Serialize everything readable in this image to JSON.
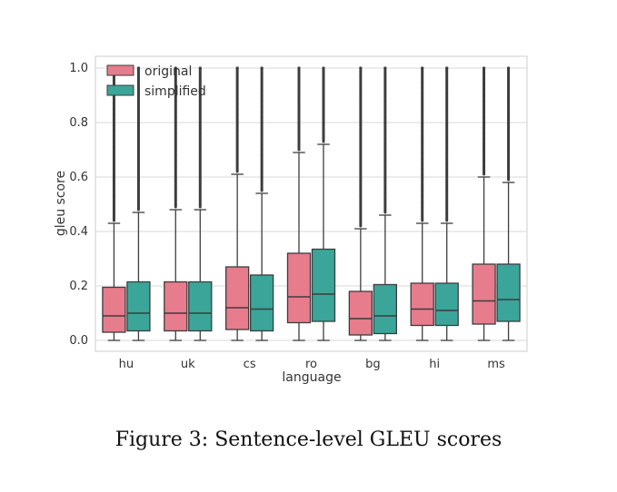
{
  "caption": "Figure 3: Sentence-level GLEU scores",
  "chart_data": {
    "type": "box",
    "xlabel": "language",
    "ylabel": "gleu score",
    "ylim": [
      0.0,
      1.0
    ],
    "yticks": [
      "0.0",
      "0.2",
      "0.4",
      "0.6",
      "0.8",
      "1.0"
    ],
    "categories": [
      "hu",
      "uk",
      "cs",
      "ro",
      "bg",
      "hi",
      "ms"
    ],
    "grid": "horizontal",
    "legend_position": "top-left",
    "series": [
      {
        "name": "original",
        "color": "#e77c8d",
        "boxes": [
          {
            "whisker_low": 0.0,
            "q1": 0.03,
            "median": 0.09,
            "q3": 0.195,
            "whisker_high": 0.43,
            "outlier_start": 0.44
          },
          {
            "whisker_low": 0.0,
            "q1": 0.035,
            "median": 0.1,
            "q3": 0.215,
            "whisker_high": 0.48,
            "outlier_start": 0.49
          },
          {
            "whisker_low": 0.0,
            "q1": 0.04,
            "median": 0.12,
            "q3": 0.27,
            "whisker_high": 0.61,
            "outlier_start": 0.62
          },
          {
            "whisker_low": 0.0,
            "q1": 0.065,
            "median": 0.16,
            "q3": 0.32,
            "whisker_high": 0.69,
            "outlier_start": 0.7
          },
          {
            "whisker_low": 0.0,
            "q1": 0.02,
            "median": 0.08,
            "q3": 0.18,
            "whisker_high": 0.41,
            "outlier_start": 0.42
          },
          {
            "whisker_low": 0.0,
            "q1": 0.055,
            "median": 0.115,
            "q3": 0.21,
            "whisker_high": 0.43,
            "outlier_start": 0.44
          },
          {
            "whisker_low": 0.0,
            "q1": 0.06,
            "median": 0.145,
            "q3": 0.28,
            "whisker_high": 0.6,
            "outlier_start": 0.61
          }
        ]
      },
      {
        "name": "simplified",
        "color": "#3ba59a",
        "boxes": [
          {
            "whisker_low": 0.0,
            "q1": 0.035,
            "median": 0.1,
            "q3": 0.215,
            "whisker_high": 0.47,
            "outlier_start": 0.48
          },
          {
            "whisker_low": 0.0,
            "q1": 0.035,
            "median": 0.1,
            "q3": 0.215,
            "whisker_high": 0.48,
            "outlier_start": 0.49
          },
          {
            "whisker_low": 0.0,
            "q1": 0.035,
            "median": 0.115,
            "q3": 0.24,
            "whisker_high": 0.54,
            "outlier_start": 0.55
          },
          {
            "whisker_low": 0.0,
            "q1": 0.07,
            "median": 0.17,
            "q3": 0.335,
            "whisker_high": 0.72,
            "outlier_start": 0.73
          },
          {
            "whisker_low": 0.0,
            "q1": 0.025,
            "median": 0.09,
            "q3": 0.205,
            "whisker_high": 0.46,
            "outlier_start": 0.47
          },
          {
            "whisker_low": 0.0,
            "q1": 0.055,
            "median": 0.11,
            "q3": 0.21,
            "whisker_high": 0.43,
            "outlier_start": 0.44
          },
          {
            "whisker_low": 0.0,
            "q1": 0.07,
            "median": 0.15,
            "q3": 0.28,
            "whisker_high": 0.58,
            "outlier_start": 0.59
          }
        ]
      }
    ]
  }
}
